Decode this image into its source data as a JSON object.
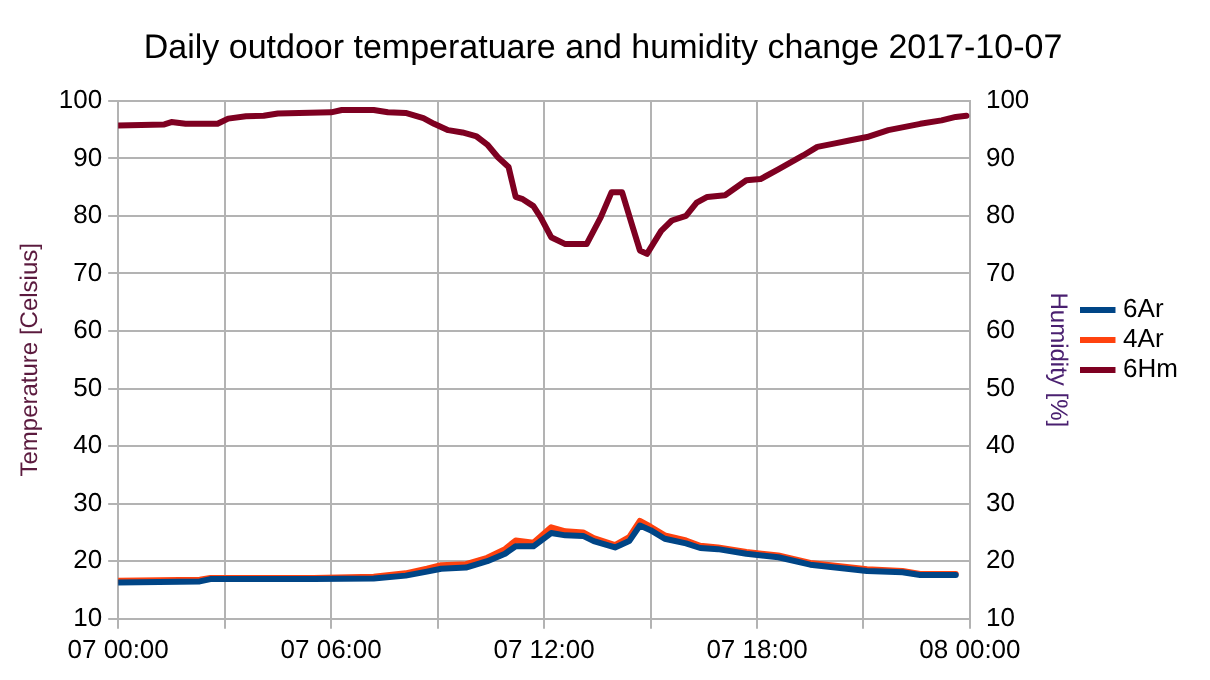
{
  "chart_data": {
    "type": "line",
    "title": "Daily outdoor temperatuare and humidity change 2017-10-07",
    "ylabel": "Temperature [Celsius]",
    "y2label": "Humidity [%]",
    "xlim": [
      "2017-10-07T00:00",
      "2017-10-08T00:00"
    ],
    "xticks": [
      {
        "value": "2017-10-07T00:00",
        "label": "07 00:00"
      },
      {
        "value": "2017-10-07T03:00",
        "label": null
      },
      {
        "value": "2017-10-07T06:00",
        "label": "07 06:00"
      },
      {
        "value": "2017-10-07T09:00",
        "label": null
      },
      {
        "value": "2017-10-07T12:00",
        "label": "07 12:00"
      },
      {
        "value": "2017-10-07T15:00",
        "label": null
      },
      {
        "value": "2017-10-07T18:00",
        "label": "07 18:00"
      },
      {
        "value": "2017-10-07T21:00",
        "label": null
      },
      {
        "value": "2017-10-08T00:00",
        "label": "08 00:00"
      }
    ],
    "ylim": [
      10,
      100
    ],
    "yticks": [
      10,
      20,
      30,
      40,
      50,
      60,
      70,
      80,
      90,
      100
    ],
    "y2lim": [
      10,
      100
    ],
    "y2ticks": [
      10,
      20,
      30,
      40,
      50,
      60,
      70,
      80,
      90,
      100
    ],
    "grid": true,
    "legend": "right",
    "marker": "none",
    "line_style": "solid",
    "x": [
      "2017-10-07T00:00",
      "2017-10-07T02:18",
      "2017-10-07T02:36",
      "2017-10-07T05:30",
      "2017-10-07T07:12",
      "2017-10-07T08:06",
      "2017-10-07T08:42",
      "2017-10-07T09:06",
      "2017-10-07T09:48",
      "2017-10-07T10:24",
      "2017-10-07T10:54",
      "2017-10-07T11:12",
      "2017-10-07T11:42",
      "2017-10-07T12:12",
      "2017-10-07T12:36",
      "2017-10-07T13:06",
      "2017-10-07T13:24",
      "2017-10-07T14:00",
      "2017-10-07T14:24",
      "2017-10-07T14:42",
      "2017-10-07T15:00",
      "2017-10-07T15:24",
      "2017-10-07T16:00",
      "2017-10-07T16:24",
      "2017-10-07T16:54",
      "2017-10-07T17:42",
      "2017-10-07T18:36",
      "2017-10-07T19:30",
      "2017-10-07T20:24",
      "2017-10-07T21:06",
      "2017-10-07T22:06",
      "2017-10-07T22:36",
      "2017-10-07T23:36"
    ],
    "series": [
      {
        "name": "6Ar",
        "color": "#004586",
        "values": [
          16.3,
          16.5,
          16.9,
          16.9,
          17,
          17.5,
          18.2,
          18.7,
          18.9,
          20,
          21.3,
          22.6,
          22.6,
          24.9,
          24.5,
          24.4,
          23.5,
          22.4,
          23.5,
          26.2,
          25.4,
          23.9,
          23.1,
          22.3,
          22.1,
          21.3,
          20.7,
          19.4,
          18.8,
          18.3,
          18.1,
          17.6,
          17.6
        ]
      },
      {
        "name": "4Ar",
        "color": "#ff420e",
        "values": [
          16.6,
          16.8,
          17.1,
          17.1,
          17.3,
          17.9,
          18.7,
          19.3,
          19.5,
          20.6,
          22.1,
          23.6,
          23.2,
          25.9,
          25.2,
          25,
          24,
          22.8,
          24.2,
          27,
          26,
          24.5,
          23.6,
          22.7,
          22.4,
          21.6,
          21,
          19.7,
          19.1,
          18.6,
          18.3,
          17.8,
          17.8
        ]
      },
      {
        "name": "6Hm",
        "color": "#7e0021",
        "axis": "y2",
        "x": [
          "2017-10-07T00:00",
          "2017-10-07T01:18",
          "2017-10-07T01:30",
          "2017-10-07T01:54",
          "2017-10-07T02:48",
          "2017-10-07T03:06",
          "2017-10-07T03:36",
          "2017-10-07T04:06",
          "2017-10-07T04:30",
          "2017-10-07T06:00",
          "2017-10-07T06:18",
          "2017-10-07T07:12",
          "2017-10-07T07:36",
          "2017-10-07T08:06",
          "2017-10-07T08:36",
          "2017-10-07T08:54",
          "2017-10-07T09:18",
          "2017-10-07T09:42",
          "2017-10-07T10:06",
          "2017-10-07T10:24",
          "2017-10-07T10:42",
          "2017-10-07T11:00",
          "2017-10-07T11:12",
          "2017-10-07T11:24",
          "2017-10-07T11:42",
          "2017-10-07T11:54",
          "2017-10-07T12:12",
          "2017-10-07T12:36",
          "2017-10-07T13:12",
          "2017-10-07T13:36",
          "2017-10-07T13:54",
          "2017-10-07T14:12",
          "2017-10-07T14:30",
          "2017-10-07T14:42",
          "2017-10-07T14:54",
          "2017-10-07T15:18",
          "2017-10-07T15:36",
          "2017-10-07T16:00",
          "2017-10-07T16:18",
          "2017-10-07T16:36",
          "2017-10-07T17:06",
          "2017-10-07T17:42",
          "2017-10-07T18:06",
          "2017-10-07T18:36",
          "2017-10-07T19:18",
          "2017-10-07T19:42",
          "2017-10-07T20:12",
          "2017-10-07T20:36",
          "2017-10-07T21:06",
          "2017-10-07T21:42",
          "2017-10-07T22:36",
          "2017-10-07T23:12",
          "2017-10-07T23:36",
          "2017-10-07T23:54"
        ],
        "values": [
          95.7,
          95.9,
          96.3,
          96,
          96,
          96.9,
          97.3,
          97.4,
          97.8,
          98,
          98.4,
          98.4,
          98,
          97.9,
          97,
          96,
          94.9,
          94.5,
          93.8,
          92.4,
          90.2,
          88.5,
          83.3,
          82.9,
          81.7,
          79.8,
          76.3,
          75.1,
          75.1,
          79.8,
          84.1,
          84.1,
          78,
          74,
          73.4,
          77.4,
          79.2,
          80,
          82.3,
          83.3,
          83.6,
          86.2,
          86.4,
          88.1,
          90.5,
          92,
          92.6,
          93.1,
          93.7,
          94.9,
          96,
          96.6,
          97.2,
          97.4
        ]
      }
    ]
  }
}
